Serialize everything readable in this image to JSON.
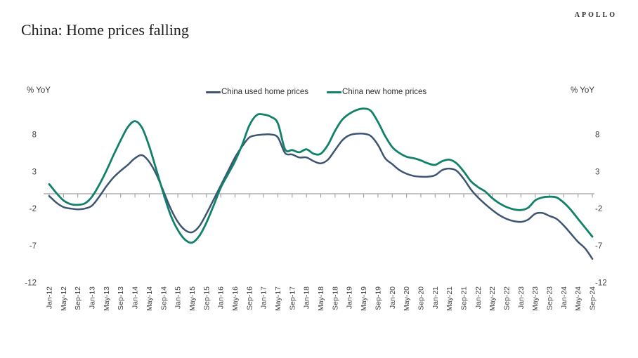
{
  "brand": "APOLLO",
  "title": "China: Home prices falling",
  "axis_unit_left": "% YoY",
  "axis_unit_right": "% YoY",
  "colors": {
    "used_line": "#3d5472",
    "new_line": "#11816a",
    "axis_line": "#b0b0b0",
    "tick_text": "#444444"
  },
  "chart_data": {
    "type": "line",
    "title": "China: Home prices falling",
    "ylabel_left": "% YoY",
    "ylabel_right": "% YoY",
    "y_ticks": [
      8,
      3,
      -2,
      -7,
      -12
    ],
    "ylim": [
      -12.5,
      12
    ],
    "baseline": 0,
    "grid": "none (zero axis line with month ticks only)",
    "legend_position": "top-center",
    "x_start": "Jan-12",
    "x_end": "Sep-24",
    "sample_interval_months": 2,
    "x_labels": [
      "Jan-12",
      "May-12",
      "Sep-12",
      "Jan-13",
      "May-13",
      "Sep-13",
      "Jan-14",
      "May-14",
      "Sep-14",
      "Jan-15",
      "May-15",
      "Sep-15",
      "Jan-16",
      "May-16",
      "Sep-16",
      "Jan-17",
      "May-17",
      "Sep-17",
      "Jan-18",
      "May-18",
      "Sep-18",
      "Jan-19",
      "May-19",
      "Sep-19",
      "Jan-20",
      "May-20",
      "Sep-20",
      "Jan-21",
      "May-21",
      "Sep-21",
      "Jan-22",
      "May-22",
      "Sep-22",
      "Jan-23",
      "May-23",
      "Sep-23",
      "Jan-24",
      "May-24",
      "Sep-24"
    ],
    "x_label_step_months": 4,
    "series": [
      {
        "name": "China used home prices",
        "color": "#3d5472",
        "values": [
          -0.3,
          -1.2,
          -1.8,
          -2.0,
          -2.1,
          -2.0,
          -1.6,
          -0.4,
          1.0,
          2.2,
          3.1,
          3.9,
          4.8,
          5.2,
          4.3,
          2.6,
          0.3,
          -2.0,
          -3.8,
          -4.9,
          -5.2,
          -4.4,
          -2.7,
          -0.8,
          1.1,
          3.0,
          4.9,
          6.4,
          7.6,
          7.9,
          8.0,
          8.0,
          7.6,
          5.5,
          5.3,
          4.9,
          4.9,
          4.4,
          4.1,
          4.6,
          5.9,
          7.2,
          7.9,
          8.1,
          8.1,
          7.8,
          6.6,
          4.8,
          4.0,
          3.2,
          2.7,
          2.4,
          2.3,
          2.3,
          2.5,
          3.2,
          3.4,
          3.1,
          2.0,
          0.6,
          -0.5,
          -1.4,
          -2.2,
          -2.9,
          -3.4,
          -3.7,
          -3.8,
          -3.5,
          -2.7,
          -2.6,
          -3.0,
          -3.4,
          -4.3,
          -5.4,
          -6.5,
          -7.4,
          -8.8
        ]
      },
      {
        "name": "China new home prices",
        "color": "#11816a",
        "values": [
          1.3,
          0.1,
          -0.9,
          -1.4,
          -1.5,
          -1.3,
          -0.4,
          1.2,
          3.1,
          5.2,
          7.2,
          9.0,
          9.8,
          8.9,
          6.4,
          3.2,
          0.0,
          -2.9,
          -4.9,
          -6.2,
          -6.6,
          -5.7,
          -3.9,
          -1.6,
          0.8,
          2.6,
          4.4,
          6.6,
          9.2,
          10.6,
          10.7,
          10.4,
          9.5,
          6.0,
          5.9,
          5.6,
          6.0,
          5.4,
          5.4,
          6.6,
          8.5,
          10.0,
          10.8,
          11.3,
          11.5,
          11.2,
          9.7,
          7.8,
          6.3,
          5.5,
          5.0,
          4.8,
          4.5,
          4.1,
          3.9,
          4.4,
          4.6,
          4.1,
          3.0,
          1.7,
          0.9,
          0.3,
          -0.6,
          -1.3,
          -1.8,
          -2.1,
          -2.2,
          -1.9,
          -0.9,
          -0.5,
          -0.4,
          -0.5,
          -1.2,
          -2.2,
          -3.4,
          -4.6,
          -5.8
        ]
      }
    ]
  }
}
